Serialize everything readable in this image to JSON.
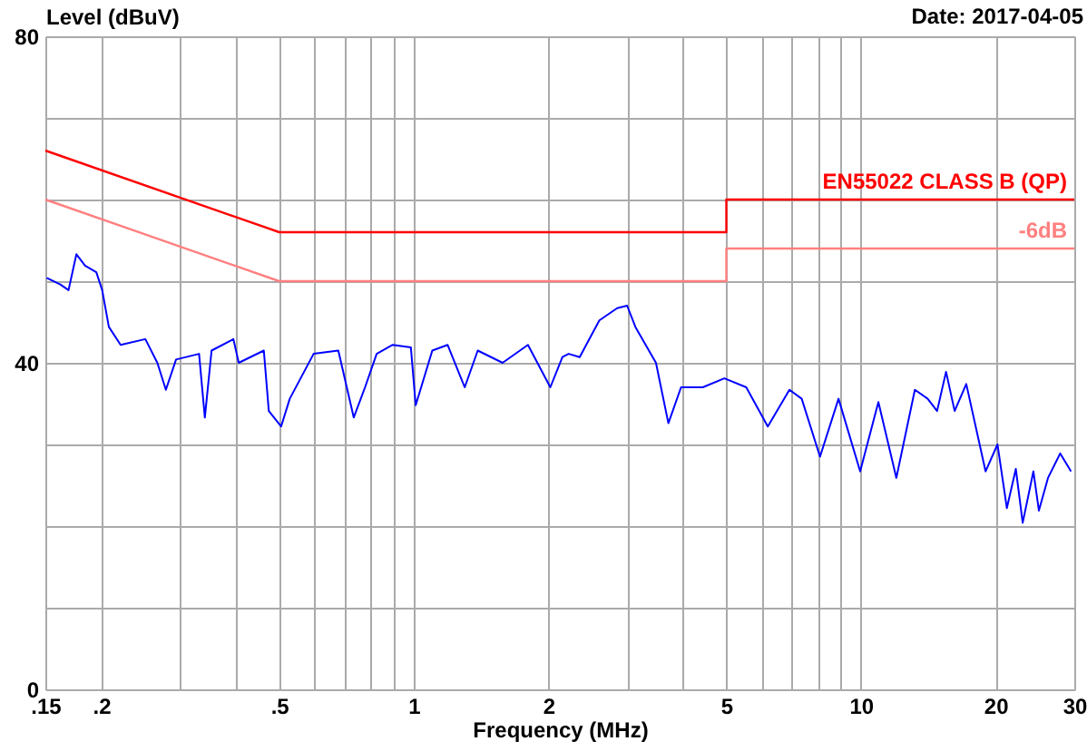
{
  "chart_data": {
    "type": "line",
    "xlabel": "Frequency (MHz)",
    "ylabel": "Level (dBuV)",
    "annotations": [
      "Date: 2017-04-05"
    ],
    "log": "x",
    "grid": true,
    "marker": "none",
    "line_style": "solid",
    "xlim": [
      0.15,
      30
    ],
    "ylim": [
      0,
      80
    ],
    "xticks": [
      {
        "value": 0.15,
        "label": ".15"
      },
      {
        "value": 0.2,
        "label": ".2"
      },
      {
        "value": 0.3,
        "label": null
      },
      {
        "value": 0.4,
        "label": null
      },
      {
        "value": 0.5,
        "label": ".5"
      },
      {
        "value": 0.6,
        "label": null
      },
      {
        "value": 0.7,
        "label": null
      },
      {
        "value": 0.8,
        "label": null
      },
      {
        "value": 0.9,
        "label": null
      },
      1,
      2,
      {
        "value": 3,
        "label": null
      },
      {
        "value": 4,
        "label": null
      },
      5,
      {
        "value": 6,
        "label": null
      },
      {
        "value": 7,
        "label": null
      },
      {
        "value": 8,
        "label": null
      },
      {
        "value": 9,
        "label": null
      },
      10,
      20,
      30
    ],
    "yticks": [
      0,
      {
        "value": 10,
        "label": null
      },
      {
        "value": 20,
        "label": null
      },
      {
        "value": 30,
        "label": null
      },
      40,
      {
        "value": 50,
        "label": null
      },
      {
        "value": 60,
        "label": null
      },
      {
        "value": 70,
        "label": null
      },
      80
    ],
    "series": [
      {
        "color": "#0000ff",
        "x": [
          0.151,
          0.162,
          0.169,
          0.176,
          0.184,
          0.195,
          0.201,
          0.208,
          0.221,
          0.251,
          0.267,
          0.279,
          0.294,
          0.331,
          0.341,
          0.353,
          0.395,
          0.406,
          0.462,
          0.474,
          0.505,
          0.528,
          0.597,
          0.678,
          0.734,
          0.778,
          0.826,
          0.897,
          0.985,
          1.01,
          1.1,
          1.19,
          1.3,
          1.39,
          1.58,
          1.8,
          2.02,
          2.15,
          2.22,
          2.35,
          2.43,
          2.6,
          2.85,
          3.0,
          3.13,
          3.48,
          3.71,
          3.96,
          4.43,
          4.95,
          5.54,
          6.19,
          6.92,
          7.37,
          8.1,
          8.91,
          9.96,
          10.94,
          12.0,
          13.2,
          14.1,
          14.8,
          15.5,
          16.2,
          17.2,
          19.0,
          20.2,
          21.2,
          22.2,
          23.0,
          24.3,
          25.0,
          26.2,
          27.9,
          29.5
        ],
        "values": [
          50.4,
          49.6,
          48.9,
          53.3,
          51.9,
          51.1,
          48.9,
          44.4,
          42.2,
          42.9,
          40,
          36.7,
          40.4,
          41.1,
          33.3,
          41.5,
          42.9,
          40,
          41.5,
          34.1,
          32.2,
          35.6,
          41.1,
          41.5,
          33.3,
          37,
          41.1,
          42.2,
          41.9,
          34.8,
          41.5,
          42.2,
          37,
          41.5,
          40,
          42.2,
          37,
          40.7,
          41.1,
          40.7,
          42.2,
          45.2,
          46.7,
          47,
          44.4,
          40,
          32.6,
          37,
          37,
          38.1,
          37,
          32.2,
          36.7,
          35.6,
          28.5,
          35.6,
          26.7,
          35.2,
          25.9,
          36.7,
          35.6,
          34.1,
          38.9,
          34.1,
          37.4,
          26.7,
          30,
          22.2,
          27,
          20.4,
          26.7,
          21.9,
          25.9,
          28.9,
          26.7
        ]
      },
      {
        "name": "EN55022 CLASS B (QP)",
        "color": "#ff0000",
        "x": [
          0.15,
          0.5,
          0.5,
          5,
          5,
          30
        ],
        "values": [
          66,
          56,
          56,
          56,
          60,
          60
        ]
      },
      {
        "name": "-6dB",
        "color": "#ff8080",
        "x": [
          0.15,
          0.5,
          0.5,
          5,
          5,
          30
        ],
        "values": [
          60,
          50,
          50,
          50,
          54,
          54
        ]
      }
    ]
  }
}
